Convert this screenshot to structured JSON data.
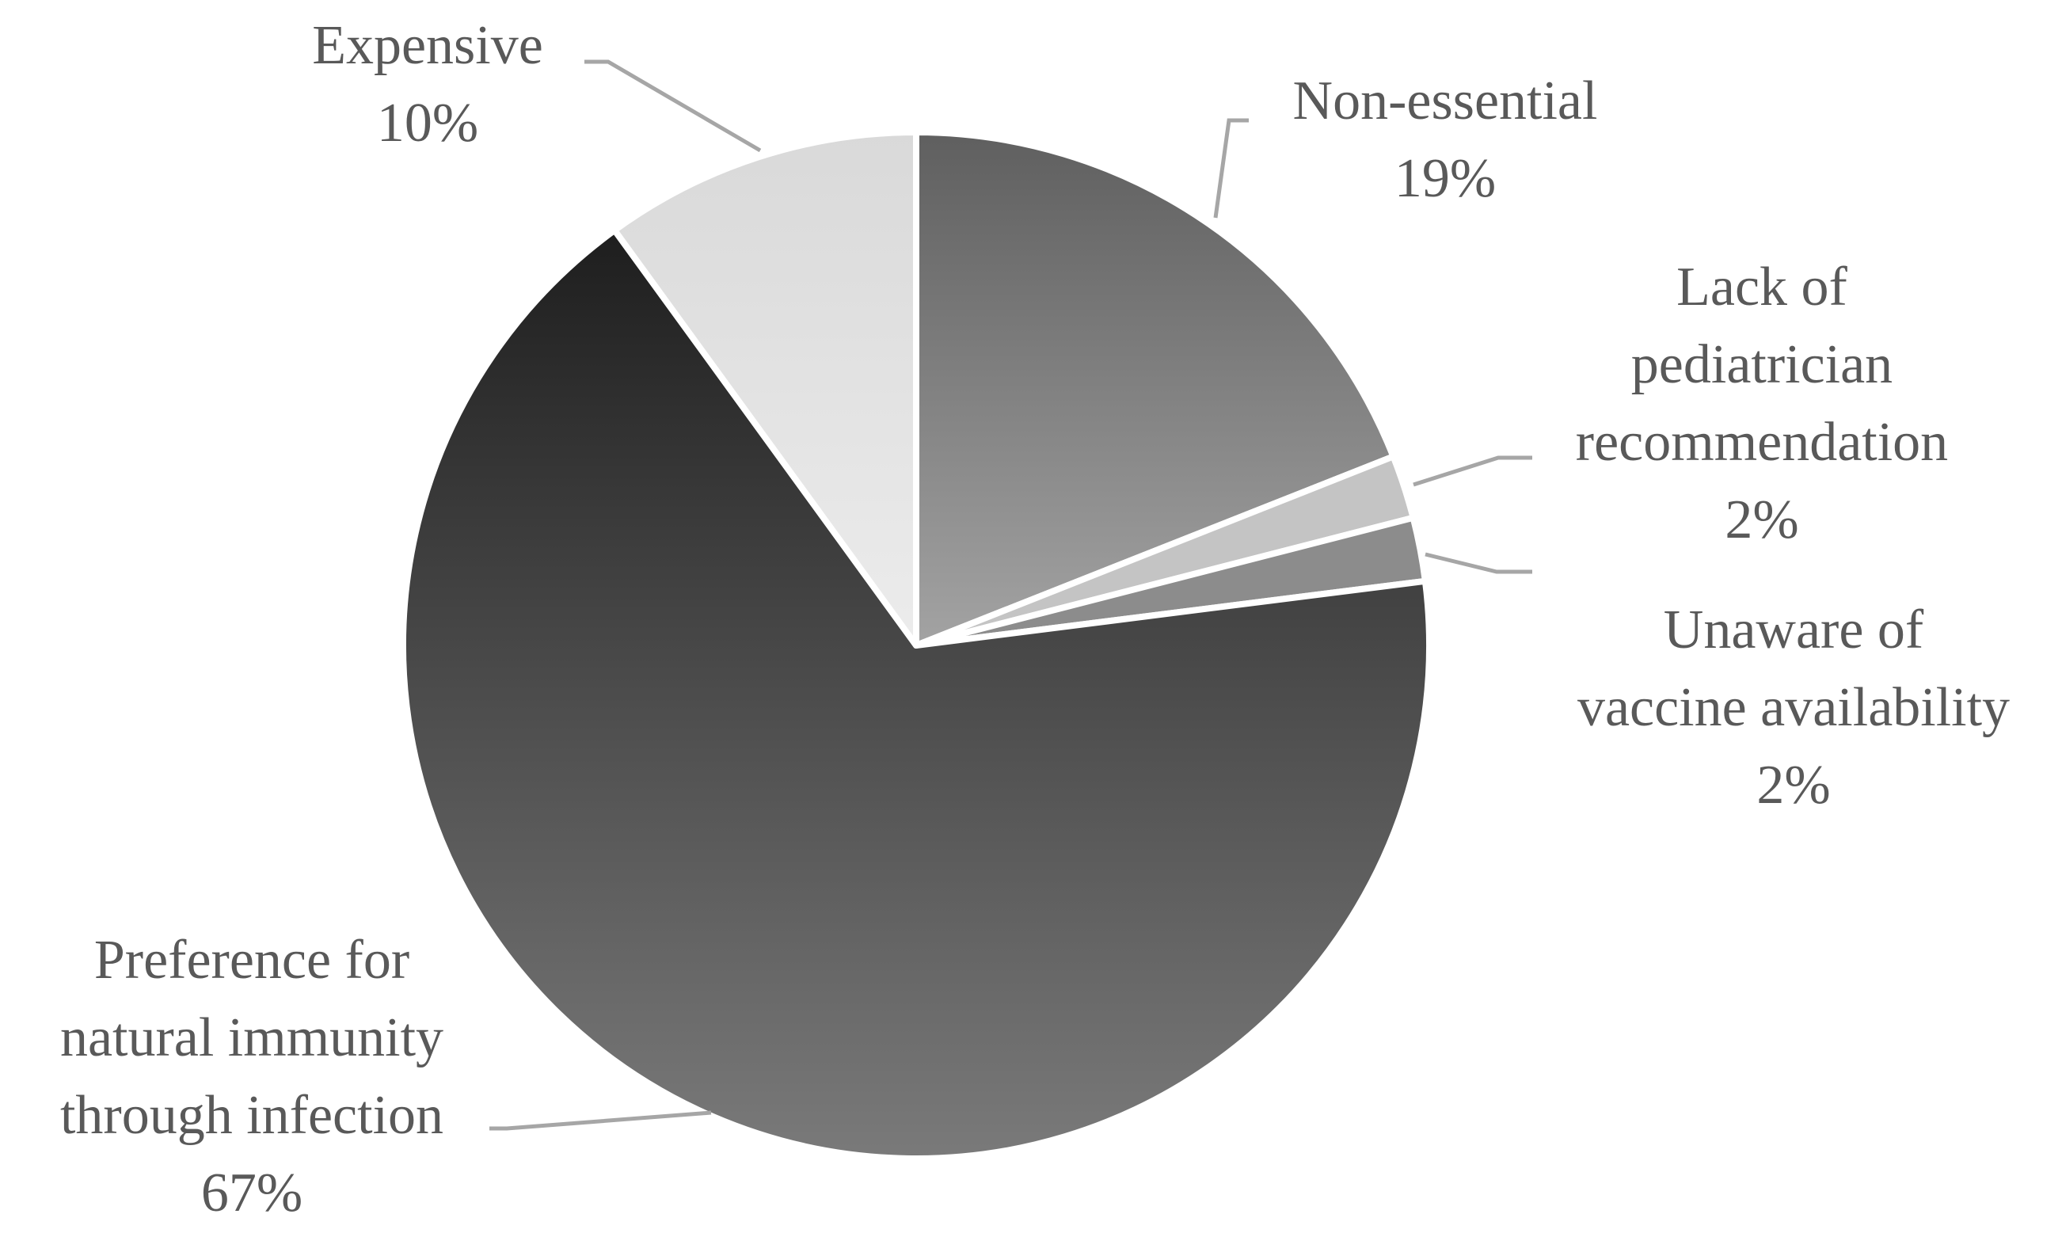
{
  "chart_data": {
    "type": "pie",
    "title": "",
    "slices": [
      {
        "label_lines": [
          "Non-essential"
        ],
        "pct_label": "19%",
        "value": 19,
        "colors": [
          "#5f5f5f",
          "#a3a3a3"
        ]
      },
      {
        "label_lines": [
          "Lack of",
          "pediatrician",
          "recommendation"
        ],
        "pct_label": "2%",
        "value": 2,
        "colors": [
          "#c4c4c4",
          "#c4c4c4"
        ]
      },
      {
        "label_lines": [
          "Unaware of",
          "vaccine availability"
        ],
        "pct_label": "2%",
        "value": 2,
        "colors": [
          "#8c8c8c",
          "#8c8c8c"
        ]
      },
      {
        "label_lines": [
          "Preference for",
          "natural immunity",
          "through infection"
        ],
        "pct_label": "67%",
        "value": 67,
        "colors": [
          "#1e1e1e",
          "#7a7a7a"
        ]
      },
      {
        "label_lines": [
          "Expensive"
        ],
        "pct_label": "10%",
        "value": 10,
        "colors": [
          "#d9d9d9",
          "#ececec"
        ]
      }
    ],
    "legend": "none",
    "data_labels": "outside with leader lines"
  }
}
